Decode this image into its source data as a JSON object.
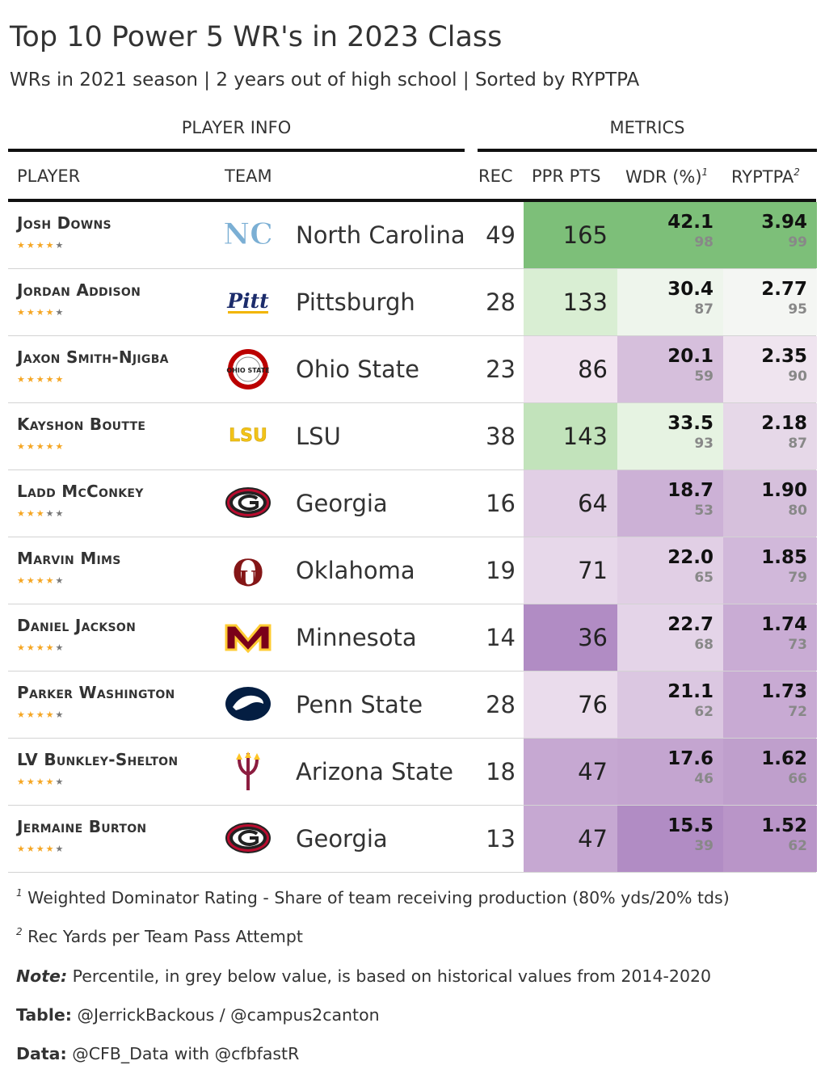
{
  "header": {
    "title": "Top 10 Power 5 WR's in 2023 Class",
    "subtitle": "WRs in 2021 season | 2 years out of high school | Sorted by RYPTPA",
    "spanner_player": "PLAYER INFO",
    "spanner_metrics": "METRICS",
    "col_player": "PLAYER",
    "col_team": "TEAM",
    "col_rec": "REC",
    "col_ppr": "PPR PTS",
    "col_wdr": "WDR (%)",
    "col_wdr_note": "1",
    "col_ryptpa": "RYPTPA",
    "col_ryptpa_note": "2"
  },
  "chart_data": {
    "type": "table",
    "columns": [
      "PLAYER",
      "TEAM",
      "REC",
      "PPR PTS",
      "WDR (%)",
      "RYPTPA"
    ],
    "rows": [
      {
        "player": "Josh Downs",
        "stars": 4,
        "team": "North Carolina",
        "logo": "unc-logo",
        "rec": "49",
        "ppr": "165",
        "wdr": "42.1",
        "wdr_pct": "98",
        "ryptpa": "3.94",
        "ryptpa_pct": "99",
        "ppr_color": "#7dbf79",
        "wdr_color": "#7dbf79",
        "ryptpa_color": "#7dbf79"
      },
      {
        "player": "Jordan Addison",
        "stars": 4,
        "team": "Pittsburgh",
        "logo": "pitt-logo",
        "rec": "28",
        "ppr": "133",
        "wdr": "30.4",
        "wdr_pct": "87",
        "ryptpa": "2.77",
        "ryptpa_pct": "95",
        "ppr_color": "#d9eed3",
        "wdr_color": "#eef5ec",
        "ryptpa_color": "#f4f6f3"
      },
      {
        "player": "Jaxon Smith-Njigba",
        "stars": 5,
        "team": "Ohio State",
        "logo": "osu-logo",
        "rec": "23",
        "ppr": "86",
        "wdr": "20.1",
        "wdr_pct": "59",
        "ryptpa": "2.35",
        "ryptpa_pct": "90",
        "ppr_color": "#f1e4f0",
        "wdr_color": "#d6bfdc",
        "ryptpa_color": "#efe4ef"
      },
      {
        "player": "Kayshon Boutte",
        "stars": 5,
        "team": "LSU",
        "logo": "lsu-logo",
        "rec": "38",
        "ppr": "143",
        "wdr": "33.5",
        "wdr_pct": "93",
        "ryptpa": "2.18",
        "ryptpa_pct": "87",
        "ppr_color": "#c2e3bb",
        "wdr_color": "#e6f3e2",
        "ryptpa_color": "#e6d8e8"
      },
      {
        "player": "Ladd McConkey",
        "stars": 3,
        "team": "Georgia",
        "logo": "uga-logo",
        "rec": "16",
        "ppr": "64",
        "wdr": "18.7",
        "wdr_pct": "53",
        "ryptpa": "1.90",
        "ryptpa_pct": "80",
        "ppr_color": "#e1cfe5",
        "wdr_color": "#ccb1d6",
        "ryptpa_color": "#d6c0dc"
      },
      {
        "player": "Marvin Mims",
        "stars": 4,
        "team": "Oklahoma",
        "logo": "ou-logo",
        "rec": "19",
        "ppr": "71",
        "wdr": "22.0",
        "wdr_pct": "65",
        "ryptpa": "1.85",
        "ryptpa_pct": "79",
        "ppr_color": "#e7d8ea",
        "wdr_color": "#e1cfe5",
        "ryptpa_color": "#d1b8da"
      },
      {
        "player": "Daniel Jackson",
        "stars": 4,
        "team": "Minnesota",
        "logo": "minn-logo",
        "rec": "14",
        "ppr": "36",
        "wdr": "22.7",
        "wdr_pct": "68",
        "ryptpa": "1.74",
        "ryptpa_pct": "73",
        "ppr_color": "#b18cc4",
        "wdr_color": "#e4d4e8",
        "ryptpa_color": "#c9acd4"
      },
      {
        "player": "Parker Washington",
        "stars": 4,
        "team": "Penn State",
        "logo": "psu-logo",
        "rec": "28",
        "ppr": "76",
        "wdr": "21.1",
        "wdr_pct": "62",
        "ryptpa": "1.73",
        "ryptpa_pct": "72",
        "ppr_color": "#eadcec",
        "wdr_color": "#dbc7e1",
        "ryptpa_color": "#c8aad3"
      },
      {
        "player": "LV Bunkley-Shelton",
        "stars": 4,
        "team": "Arizona State",
        "logo": "asu-logo",
        "rec": "18",
        "ppr": "47",
        "wdr": "17.6",
        "wdr_pct": "46",
        "ryptpa": "1.62",
        "ryptpa_pct": "66",
        "ppr_color": "#c6a8d2",
        "wdr_color": "#c4a5d0",
        "ryptpa_color": "#bf9fcc"
      },
      {
        "player": "Jermaine Burton",
        "stars": 4,
        "team": "Georgia",
        "logo": "uga-logo",
        "rec": "13",
        "ppr": "47",
        "wdr": "15.5",
        "wdr_pct": "39",
        "ryptpa": "1.52",
        "ryptpa_pct": "62",
        "ppr_color": "#c6a8d2",
        "wdr_color": "#b18cc4",
        "ryptpa_color": "#b995c8"
      }
    ]
  },
  "footer": {
    "fn1_mark": "1",
    "fn1_text": "Weighted Dominator Rating - Share of team receiving production (80% yds/20% tds)",
    "fn2_mark": "2",
    "fn2_text": "Rec Yards per Team Pass Attempt",
    "note_label": "Note:",
    "note_text": " Percentile, in grey below value, is based on historical values from 2014-2020",
    "table_label": "Table:",
    "table_text": " @JerrickBackous / @campus2canton",
    "data_label": "Data:",
    "data_text": " @CFB_Data with @cfbfastR"
  },
  "logo_text": {
    "pitt": "Pitt",
    "lsu": "LSU",
    "osu": "OHIO STATE"
  }
}
